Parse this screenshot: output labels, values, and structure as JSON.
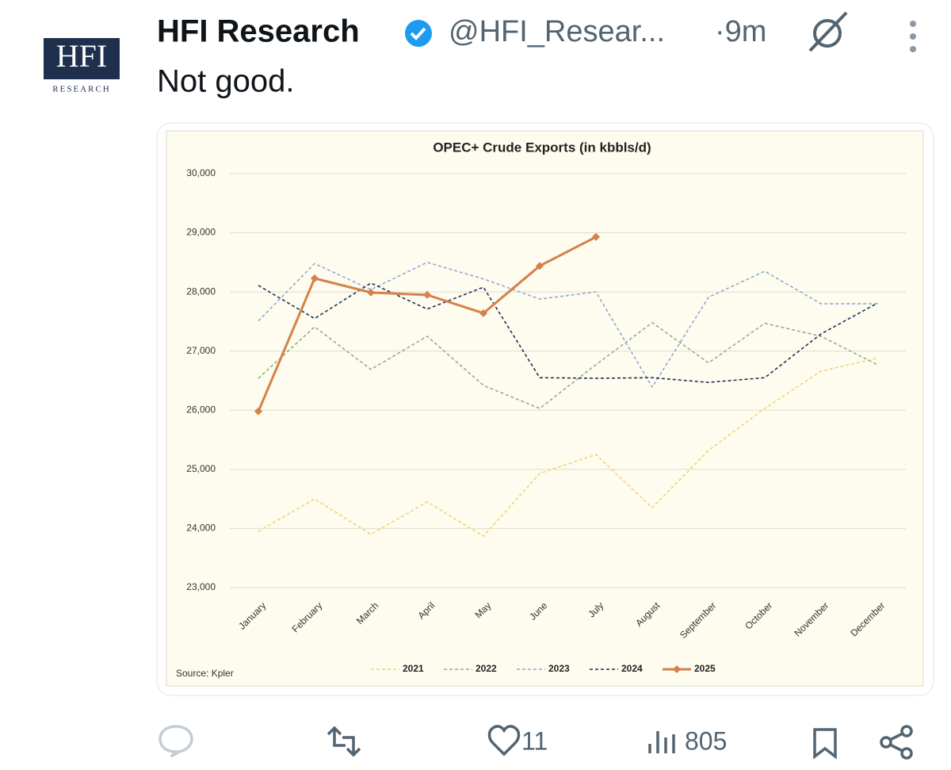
{
  "tweet": {
    "avatar": {
      "text": "HFI",
      "subtext": "RESEARCH"
    },
    "author": "HFI Research",
    "handle": "@HFI_Resear...",
    "time": "·9m",
    "text": "Not good.",
    "likes": 11,
    "views": 805
  },
  "chart_data": {
    "type": "line",
    "title": "OPEC+ Crude Exports (in kbbls/d)",
    "source": "Source: Kpler",
    "categories": [
      "January",
      "February",
      "March",
      "April",
      "May",
      "June",
      "July",
      "August",
      "September",
      "October",
      "November",
      "December"
    ],
    "ylim": [
      23000,
      30000
    ],
    "yticks": [
      {
        "value": 23000,
        "label": "23,000"
      },
      {
        "value": 24000,
        "label": "24,000"
      },
      {
        "value": 25000,
        "label": "25,000"
      },
      {
        "value": 26000,
        "label": "26,000"
      },
      {
        "value": 27000,
        "label": "27,000"
      },
      {
        "value": 28000,
        "label": "28,000"
      },
      {
        "value": 29000,
        "label": "29,000"
      },
      {
        "value": 30000,
        "label": "30,000"
      }
    ],
    "grid": true,
    "series": [
      {
        "name": "2021",
        "color": "#f2d27a",
        "dashed": true,
        "values": [
          23950,
          24500,
          23900,
          24450,
          23870,
          24930,
          25250,
          24350,
          25320,
          26030,
          26660,
          26880
        ]
      },
      {
        "name": "2022",
        "color": "#93b07a",
        "dashed": true,
        "values": [
          26540,
          27410,
          26690,
          27250,
          26420,
          26030,
          26770,
          27480,
          26800,
          27470,
          27250,
          26770
        ]
      },
      {
        "name": "2023",
        "color": "#8fa9d8",
        "dashed": true,
        "values": [
          27510,
          28480,
          28040,
          28500,
          28220,
          27880,
          28000,
          26390,
          27910,
          28350,
          27800,
          27800
        ]
      },
      {
        "name": "2024",
        "color": "#22305a",
        "dashed": true,
        "values": [
          28110,
          27550,
          28150,
          27710,
          28080,
          26550,
          26540,
          26550,
          26470,
          26550,
          27290,
          27810
        ]
      },
      {
        "name": "2025",
        "color": "#d4814a",
        "dashed": false,
        "values": [
          25980,
          28230,
          27990,
          27950,
          27640,
          28440,
          28930,
          null,
          null,
          null,
          null,
          null
        ]
      }
    ]
  }
}
